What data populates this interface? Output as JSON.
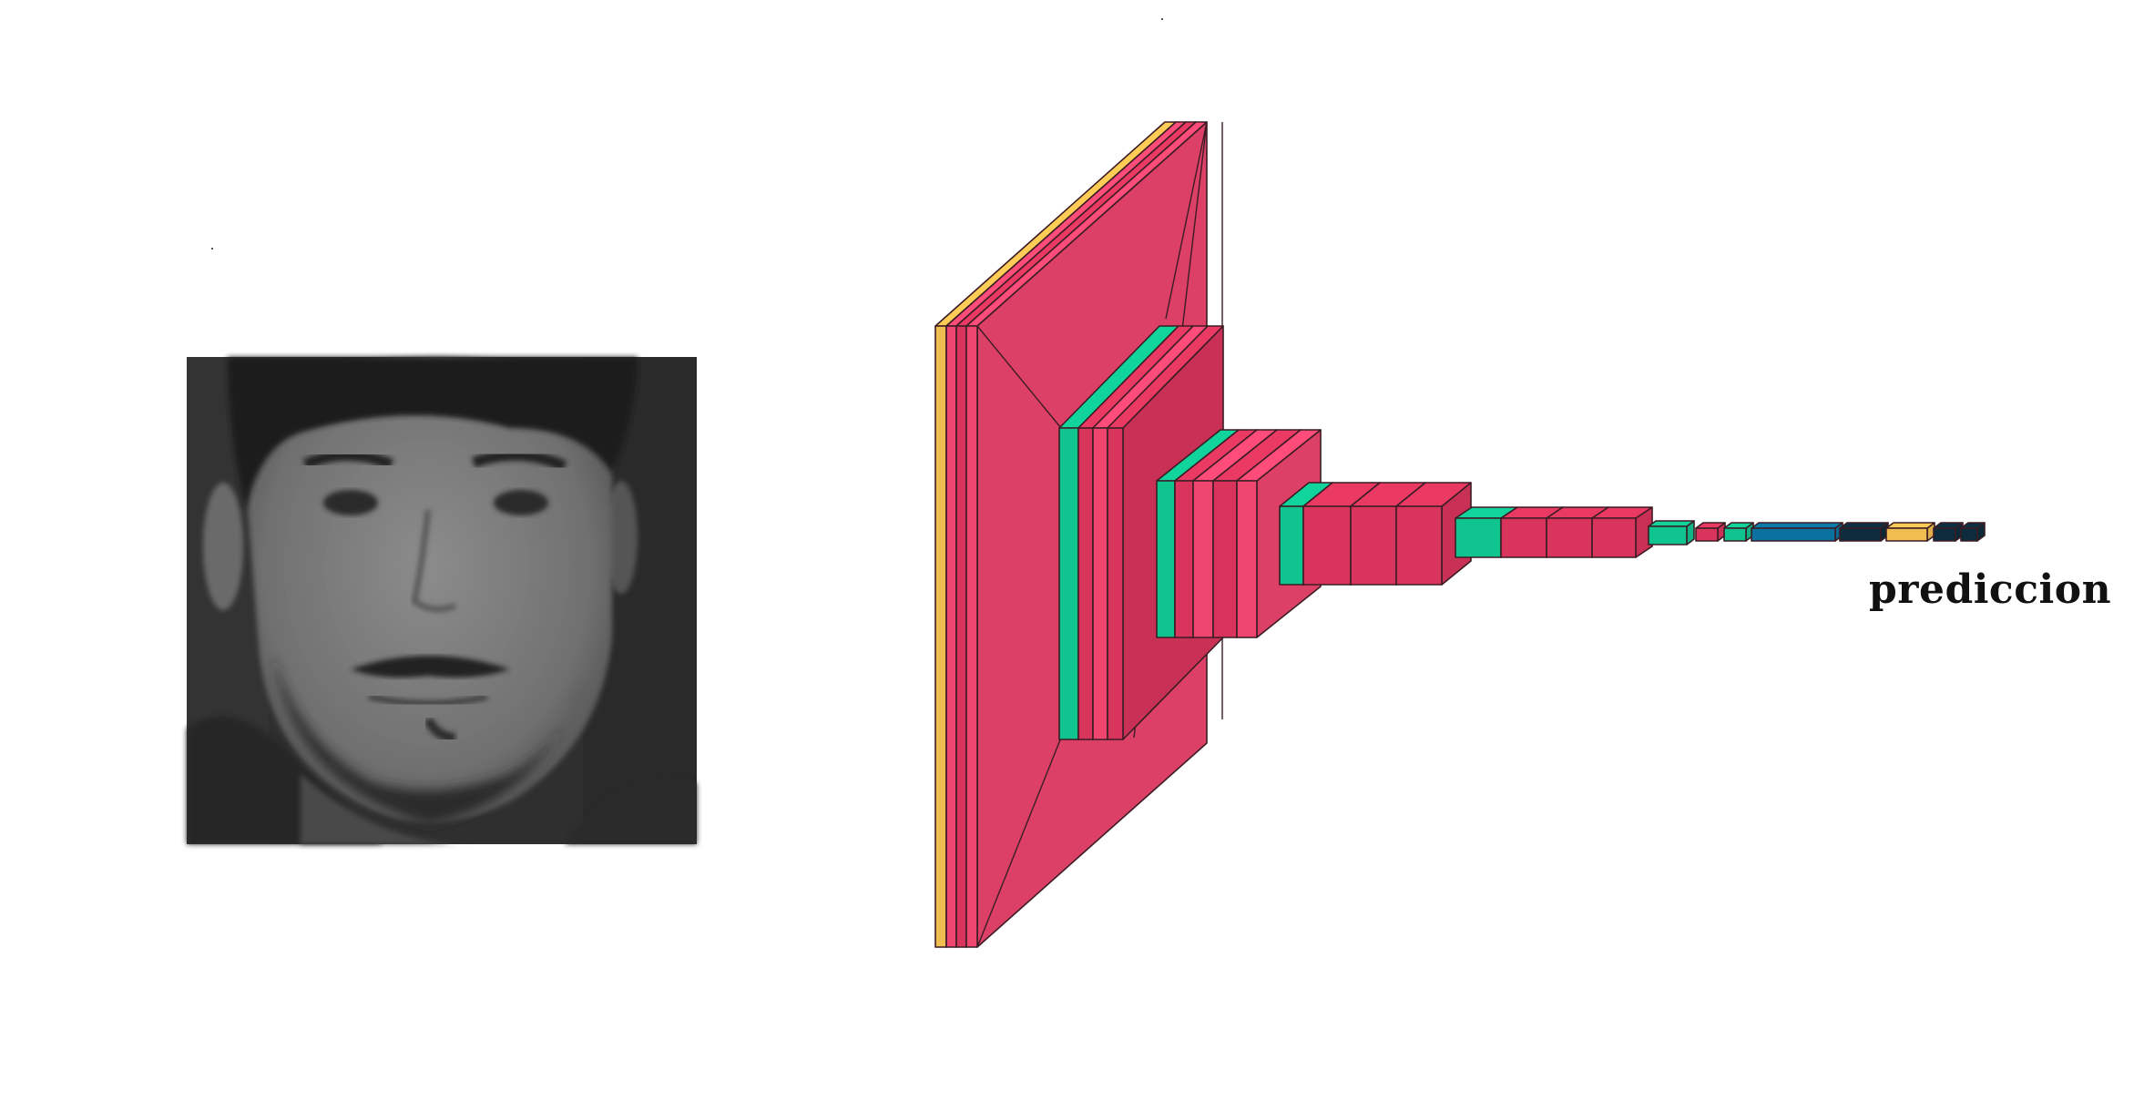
{
  "output_label": "prediccion",
  "input_image": {
    "description_name": "grayscale-face-photo"
  },
  "colors": {
    "conv": "#ef4670",
    "conv_alt": "#d9355c",
    "batchnorm": "#10c490",
    "input": "#f0bd50",
    "dense": "#0b729f",
    "dark": "#0c2b3c",
    "edge": "#3b1c24"
  }
}
